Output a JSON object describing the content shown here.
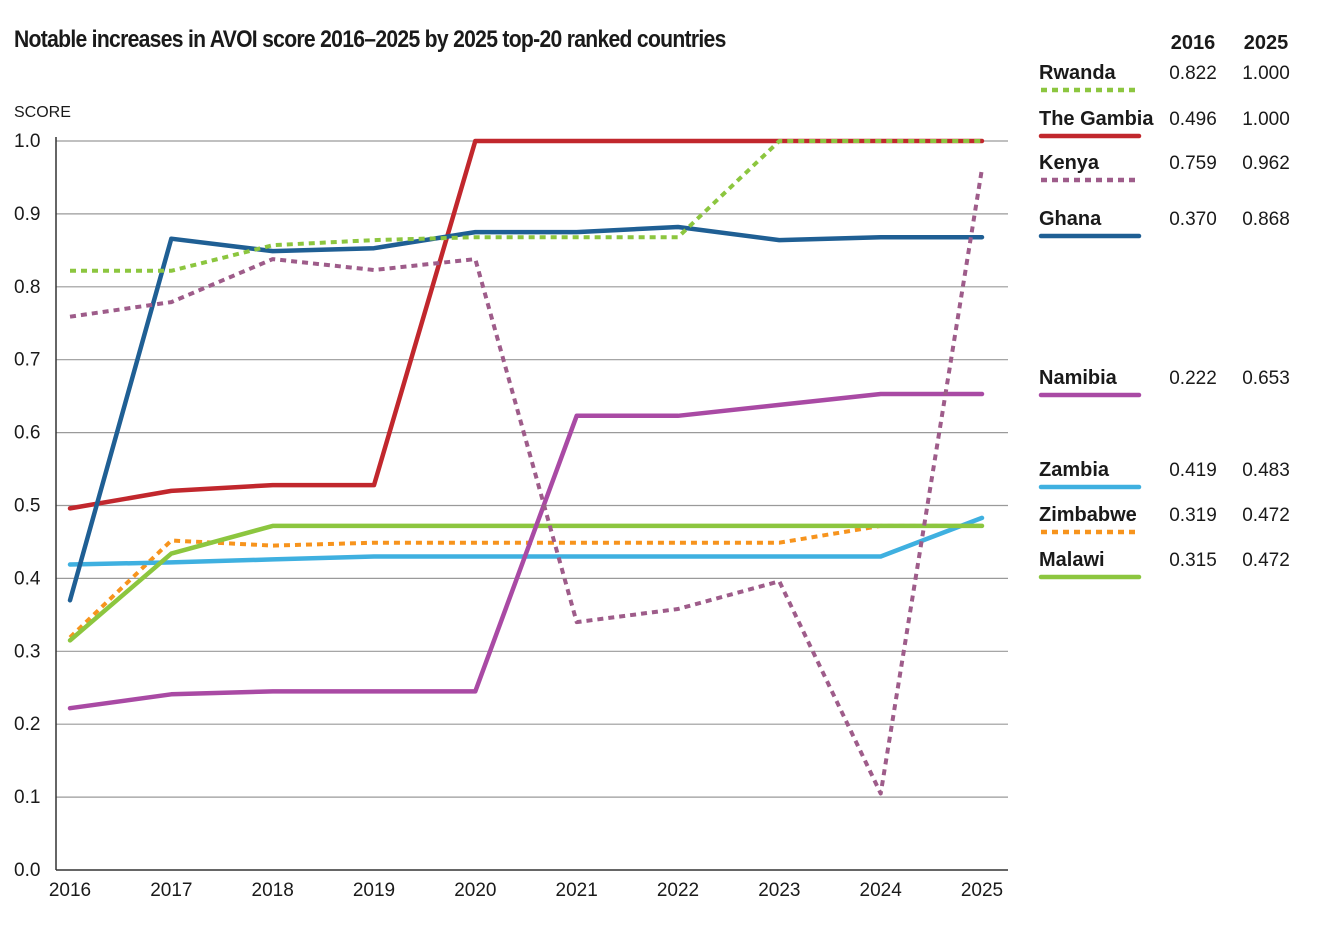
{
  "chart_data": {
    "type": "line",
    "title": "Notable increases in AVOI score 2016–2025 by 2025 top-20 ranked countries",
    "ylabel": "SCORE",
    "xlabel": "",
    "ylim": [
      0,
      1.0
    ],
    "yticks": [
      "0.0",
      "0.1",
      "0.2",
      "0.3",
      "0.4",
      "0.5",
      "0.6",
      "0.7",
      "0.8",
      "0.9",
      "1.0"
    ],
    "x": [
      "2016",
      "2017",
      "2018",
      "2019",
      "2020",
      "2021",
      "2022",
      "2023",
      "2024",
      "2025"
    ],
    "grid": true,
    "legend_position": "right",
    "legend_headers": [
      "2016",
      "2025"
    ],
    "series": [
      {
        "name": "Rwanda",
        "color": "#8cc63f",
        "dashed": true,
        "v2016": "0.822",
        "v2025": "1.000",
        "values": [
          0.822,
          0.822,
          0.857,
          0.864,
          0.868,
          0.868,
          0.868,
          1.0,
          1.0,
          1.0
        ]
      },
      {
        "name": "The Gambia",
        "color": "#c1272d",
        "dashed": false,
        "v2016": "0.496",
        "v2025": "1.000",
        "values": [
          0.496,
          0.52,
          0.528,
          0.528,
          1.0,
          1.0,
          1.0,
          1.0,
          1.0,
          1.0
        ]
      },
      {
        "name": "Kenya",
        "color": "#9e5c8a",
        "dashed": true,
        "v2016": "0.759",
        "v2025": "0.962",
        "values": [
          0.759,
          0.779,
          0.838,
          0.823,
          0.838,
          0.34,
          0.358,
          0.396,
          0.105,
          0.962
        ]
      },
      {
        "name": "Ghana",
        "color": "#1f5f94",
        "dashed": false,
        "v2016": "0.370",
        "v2025": "0.868",
        "values": [
          0.37,
          0.866,
          0.849,
          0.853,
          0.875,
          0.875,
          0.882,
          0.864,
          0.868,
          0.868
        ]
      },
      {
        "name": "Namibia",
        "color": "#a94aa4",
        "dashed": false,
        "v2016": "0.222",
        "v2025": "0.653",
        "values": [
          0.222,
          0.241,
          0.245,
          0.245,
          0.245,
          0.623,
          0.623,
          0.638,
          0.653,
          0.653
        ]
      },
      {
        "name": "Zambia",
        "color": "#3fb0e0",
        "dashed": false,
        "v2016": "0.419",
        "v2025": "0.483",
        "values": [
          0.419,
          0.422,
          0.426,
          0.43,
          0.43,
          0.43,
          0.43,
          0.43,
          0.43,
          0.483
        ]
      },
      {
        "name": "Zimbabwe",
        "color": "#f7941d",
        "dashed": true,
        "v2016": "0.319",
        "v2025": "0.472",
        "values": [
          0.319,
          0.452,
          0.445,
          0.449,
          0.449,
          0.449,
          0.449,
          0.449,
          0.472,
          0.472
        ]
      },
      {
        "name": "Malawi",
        "color": "#8cc63f",
        "dashed": false,
        "v2016": "0.315",
        "v2025": "0.472",
        "values": [
          0.315,
          0.434,
          0.472,
          0.472,
          0.472,
          0.472,
          0.472,
          0.472,
          0.472,
          0.472
        ]
      }
    ]
  }
}
